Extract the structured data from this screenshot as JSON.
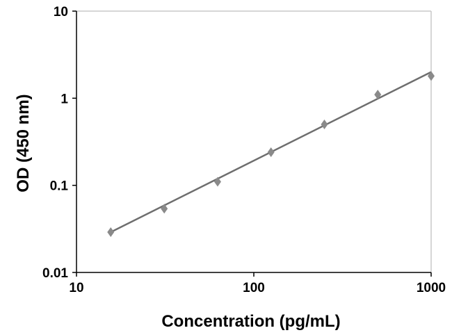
{
  "chart_data": {
    "type": "scatter",
    "xlabel": "Concentration (pg/mL)",
    "ylabel": "OD (450 nm)",
    "x_scale": "log",
    "y_scale": "log",
    "xlim": [
      10,
      1000
    ],
    "ylim": [
      0.01,
      10
    ],
    "x_ticks": [
      "10",
      "100",
      "1000"
    ],
    "y_ticks": [
      "0.01",
      "0.1",
      "1",
      "10"
    ],
    "grid": false,
    "legend": "none",
    "series": [
      {
        "x": [
          15.6,
          31.25,
          62.5,
          125,
          250,
          500,
          1000
        ],
        "y": [
          0.029,
          0.054,
          0.11,
          0.24,
          0.5,
          1.1,
          1.8
        ]
      }
    ],
    "trendline": {
      "type": "power",
      "points": [
        [
          15.6,
          0.029
        ],
        [
          1000,
          2.0
        ]
      ]
    },
    "colors": {
      "marker": "#8a8a8a",
      "line": "#6e6e6e",
      "frame": "#c8c8c8",
      "axis": "#000000"
    }
  }
}
